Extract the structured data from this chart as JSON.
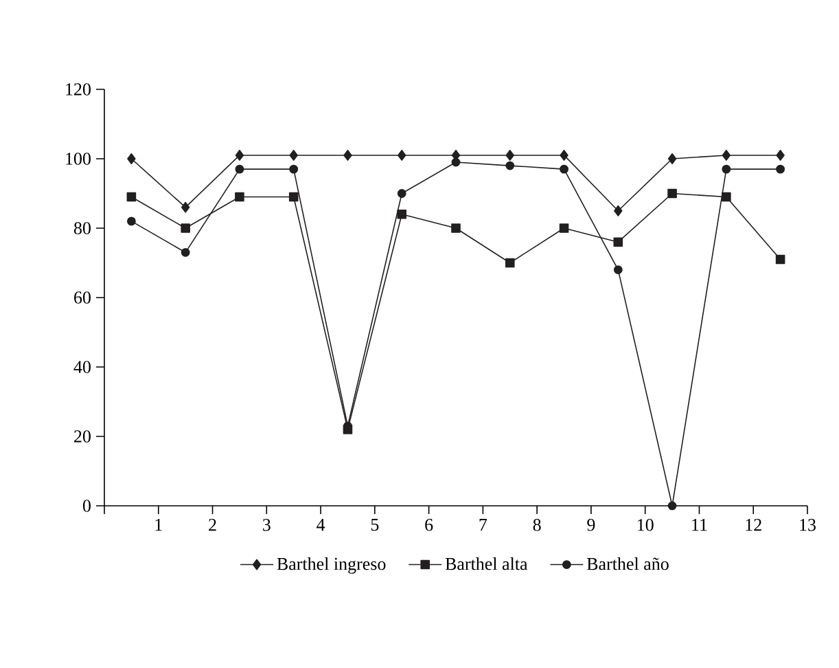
{
  "chart_data": {
    "type": "line",
    "x": [
      0.5,
      1.5,
      2.5,
      3.5,
      4.5,
      5.5,
      6.5,
      7.5,
      8.5,
      9.5,
      10.5,
      11.5,
      12.5
    ],
    "series": [
      {
        "name": "Barthel ingreso",
        "color": "#231f20",
        "marker": "diamond",
        "values": [
          100,
          86,
          101,
          101,
          101,
          101,
          101,
          101,
          101,
          85,
          100,
          101,
          101
        ]
      },
      {
        "name": "Barthel alta",
        "color": "#231f20",
        "marker": "square",
        "values": [
          89,
          80,
          89,
          89,
          22,
          84,
          80,
          70,
          80,
          76,
          90,
          89,
          71
        ]
      },
      {
        "name": "Barthel año",
        "color": "#231f20",
        "marker": "circle",
        "values": [
          82,
          73,
          97,
          97,
          23,
          90,
          99,
          98,
          97,
          68,
          0,
          97,
          97
        ]
      }
    ],
    "xlim": [
      0,
      13
    ],
    "xticks": [
      1,
      2,
      3,
      4,
      5,
      6,
      7,
      8,
      9,
      10,
      11,
      12,
      13
    ],
    "ylim": [
      0,
      120
    ],
    "yticks": [
      0,
      20,
      40,
      60,
      80,
      100,
      120
    ],
    "grid": false,
    "legend": "bottom",
    "line_style": "solid"
  }
}
